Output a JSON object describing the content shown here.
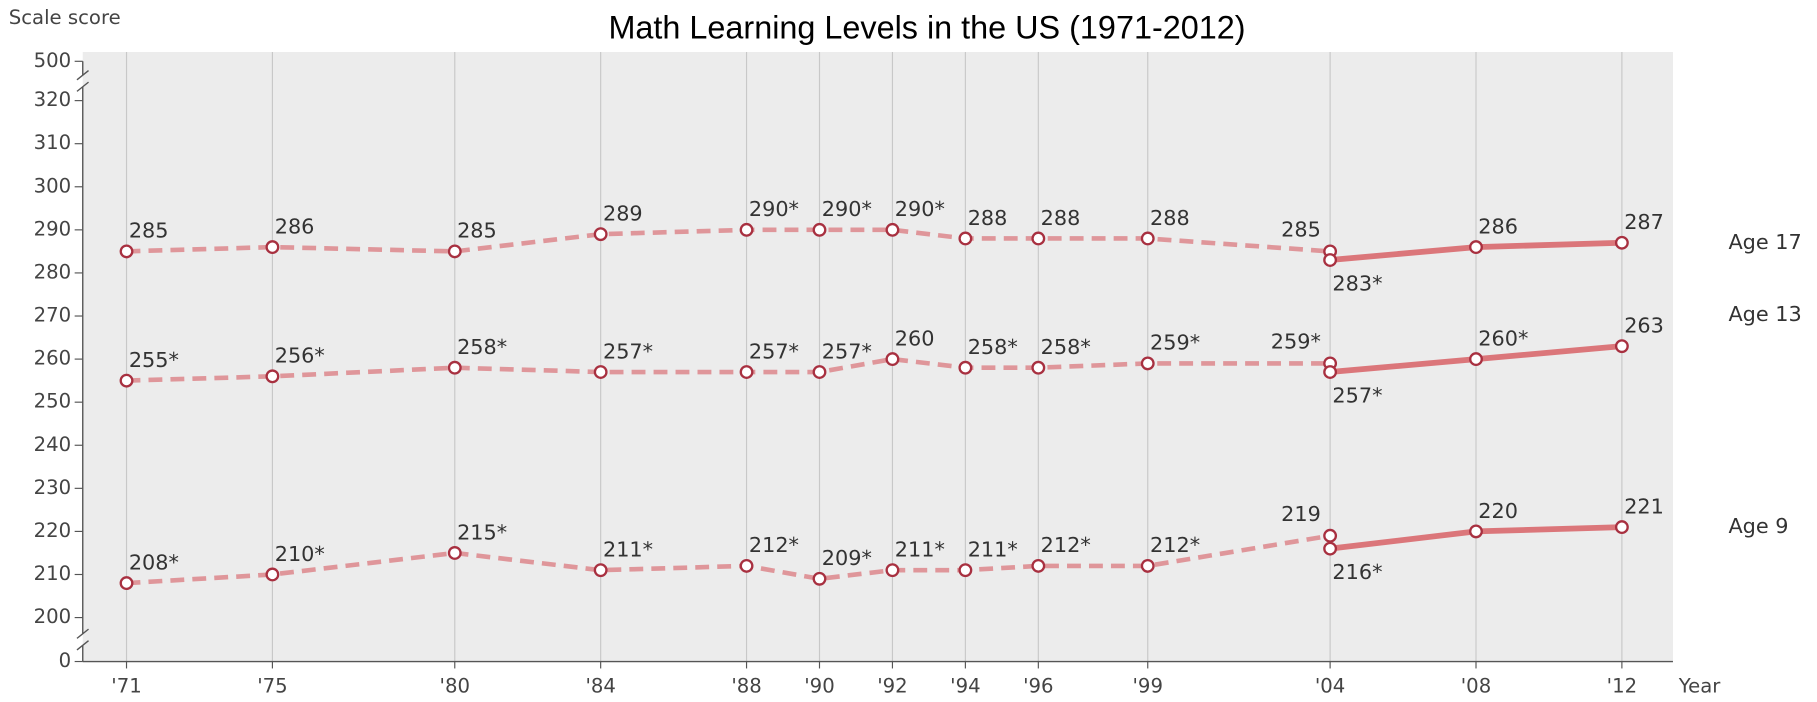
{
  "chart_data": {
    "type": "line",
    "title": "Math Learning Levels in the US (1971-2012)",
    "y_label": "Scale score",
    "x_label": "Year",
    "xlim": [
      1969.8,
      2013.4
    ],
    "xticks": [
      {
        "value": 1971,
        "label": "'71"
      },
      {
        "value": 1975,
        "label": "'75"
      },
      {
        "value": 1980,
        "label": "'80"
      },
      {
        "value": 1984,
        "label": "'84"
      },
      {
        "value": 1988,
        "label": "'88"
      },
      {
        "value": 1990,
        "label": "'90"
      },
      {
        "value": 1992,
        "label": "'92"
      },
      {
        "value": 1994,
        "label": "'94"
      },
      {
        "value": 1996,
        "label": "'96"
      },
      {
        "value": 1999,
        "label": "'99"
      },
      {
        "value": 2004,
        "label": "'04"
      },
      {
        "value": 2008,
        "label": "'08"
      },
      {
        "value": 2012,
        "label": "'12"
      }
    ],
    "ylim": [
      0,
      500
    ],
    "yticks": [
      0,
      200,
      210,
      220,
      230,
      240,
      250,
      260,
      270,
      280,
      290,
      300,
      310,
      320,
      500
    ],
    "axis_breaks": [
      [
        0,
        200
      ],
      [
        320,
        500
      ]
    ],
    "grid": true,
    "series": [
      {
        "name": "Age 17",
        "color": "#d9696e",
        "segments": [
          {
            "style": "dashed",
            "x": [
              1971,
              1975,
              1980,
              1984,
              1988,
              1990,
              1992,
              1994,
              1996,
              1999,
              2004
            ],
            "values": [
              285,
              286,
              285,
              289,
              290,
              290,
              290,
              288,
              288,
              288,
              285
            ],
            "value_labels": [
              "285",
              "286",
              "285",
              "289",
              "290*",
              "290*",
              "290*",
              "288",
              "288",
              "288",
              "285"
            ]
          },
          {
            "style": "solid",
            "x": [
              2004,
              2008,
              2012
            ],
            "values": [
              283,
              286,
              287
            ],
            "value_labels": [
              "283*",
              "286",
              "287"
            ]
          }
        ]
      },
      {
        "name": "Age 13",
        "color": "#d9696e",
        "segments": [
          {
            "style": "dashed",
            "x": [
              1971,
              1975,
              1980,
              1984,
              1988,
              1990,
              1992,
              1994,
              1996,
              1999,
              2004
            ],
            "values": [
              255,
              256,
              258,
              257,
              257,
              257,
              260,
              258,
              258,
              259,
              259
            ],
            "value_labels": [
              "255*",
              "256*",
              "258*",
              "257*",
              "257*",
              "257*",
              "260",
              "258*",
              "258*",
              "259*",
              "259*"
            ]
          },
          {
            "style": "solid",
            "x": [
              2004,
              2008,
              2012
            ],
            "values": [
              257,
              260,
              263
            ],
            "value_labels": [
              "257*",
              "260*",
              "263"
            ]
          }
        ]
      },
      {
        "name": "Age 9",
        "color": "#d9696e",
        "segments": [
          {
            "style": "dashed",
            "x": [
              1971,
              1975,
              1980,
              1984,
              1988,
              1990,
              1992,
              1994,
              1996,
              1999,
              2004
            ],
            "values": [
              208,
              210,
              215,
              211,
              212,
              209,
              211,
              211,
              212,
              212,
              219
            ],
            "value_labels": [
              "208*",
              "210*",
              "215*",
              "211*",
              "212*",
              "209*",
              "211*",
              "211*",
              "212*",
              "212*",
              "219"
            ]
          },
          {
            "style": "solid",
            "x": [
              2004,
              2008,
              2012
            ],
            "values": [
              216,
              220,
              221
            ],
            "value_labels": [
              "216*",
              "220",
              "221"
            ]
          }
        ]
      }
    ]
  }
}
